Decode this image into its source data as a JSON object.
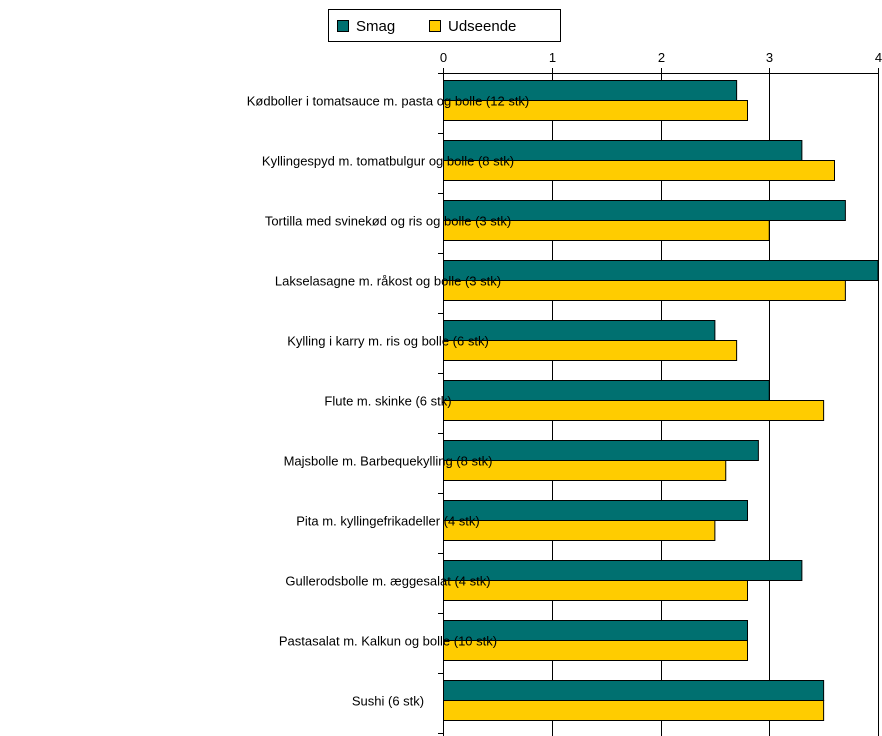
{
  "chart_data": {
    "type": "bar",
    "orientation": "horizontal",
    "categories": [
      "Kødboller i tomatsauce m. pasta og bolle (12 stk)",
      "Kyllingespyd m. tomatbulgur og bolle (8 stk)",
      "Tortilla med svinekød og ris og bolle (3 stk)",
      "Lakselasagne m. råkost og bolle (3 stk)",
      "Kylling i karry m. ris og bolle (6 stk)",
      "Flute m. skinke (6 stk)",
      "Majsbolle m. Barbequekylling (8 stk)",
      "Pita m. kyllingefrikadeller (4 stk)",
      "Gullerodsbolle m. æggesalat (4 stk)",
      "Pastasalat m. Kalkun og bolle (10 stk)",
      "Sushi (6 stk)"
    ],
    "series": [
      {
        "name": "Smag",
        "color": "#007070",
        "values": [
          2.7,
          3.3,
          3.7,
          4.0,
          2.5,
          3.0,
          2.9,
          2.8,
          3.3,
          2.8,
          3.5
        ]
      },
      {
        "name": "Udseende",
        "color": "#FFCC00",
        "values": [
          2.8,
          3.6,
          3.0,
          3.7,
          2.7,
          3.5,
          2.6,
          2.5,
          2.8,
          2.8,
          3.5
        ]
      }
    ],
    "xlim": [
      0,
      4
    ],
    "xticks": [
      "0",
      "1",
      "2",
      "3",
      "4"
    ],
    "x_axis_position": "top",
    "grid": true,
    "legend_position": "top"
  }
}
